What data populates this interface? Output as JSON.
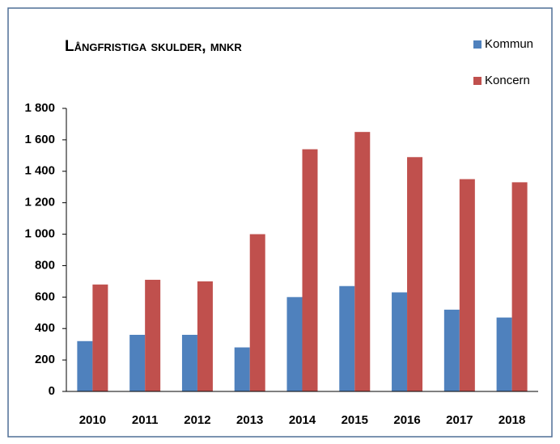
{
  "chart_data": {
    "type": "bar",
    "title": "Långfristiga skulder, mnkr",
    "categories": [
      "2010",
      "2011",
      "2012",
      "2013",
      "2014",
      "2015",
      "2016",
      "2017",
      "2018"
    ],
    "series": [
      {
        "name": "Kommun",
        "color": "#4f81bd",
        "values": [
          320,
          360,
          360,
          280,
          600,
          670,
          630,
          520,
          470
        ]
      },
      {
        "name": "Koncern",
        "color": "#c0504d",
        "values": [
          680,
          710,
          700,
          1000,
          1540,
          1650,
          1490,
          1350,
          1330
        ]
      }
    ],
    "ylim": [
      0,
      1800
    ],
    "yticks": [
      0,
      200,
      400,
      600,
      800,
      {
        "value": 1000,
        "label": "1 000"
      },
      {
        "value": 1200,
        "label": "1 200"
      },
      {
        "value": 1400,
        "label": "1 400"
      },
      {
        "value": 1600,
        "label": "1 600"
      },
      {
        "value": 1800,
        "label": "1 800"
      }
    ],
    "grid": false,
    "legend": "top-right"
  }
}
